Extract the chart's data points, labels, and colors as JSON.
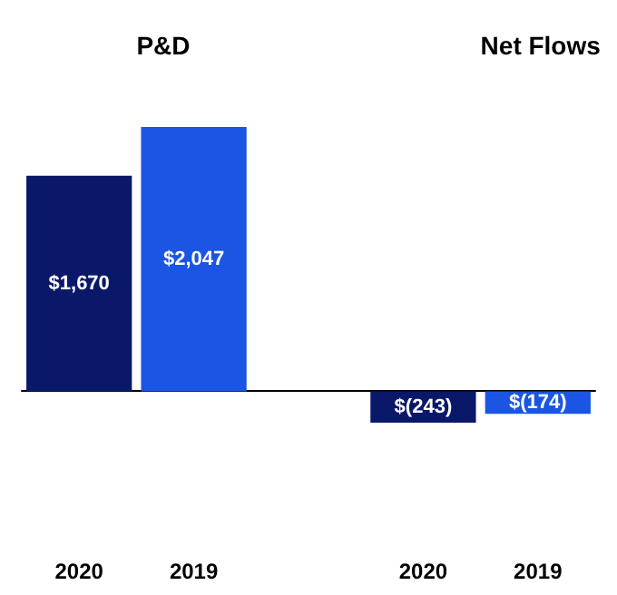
{
  "chart_data": {
    "type": "bar",
    "annotations": [
      "P&D",
      "Net Flows"
    ],
    "categories": [
      "2020",
      "2019",
      null,
      "2020",
      "2019"
    ],
    "values": [
      1670,
      2047,
      null,
      -243,
      -174
    ],
    "colors": [
      "#0a1869",
      "#1a55e3",
      "#ffffff",
      "#0a1869",
      "#1a55e3"
    ],
    "value_labels": [
      "$1,670",
      "$2,047",
      null,
      "$(243)",
      "$(174)"
    ]
  }
}
